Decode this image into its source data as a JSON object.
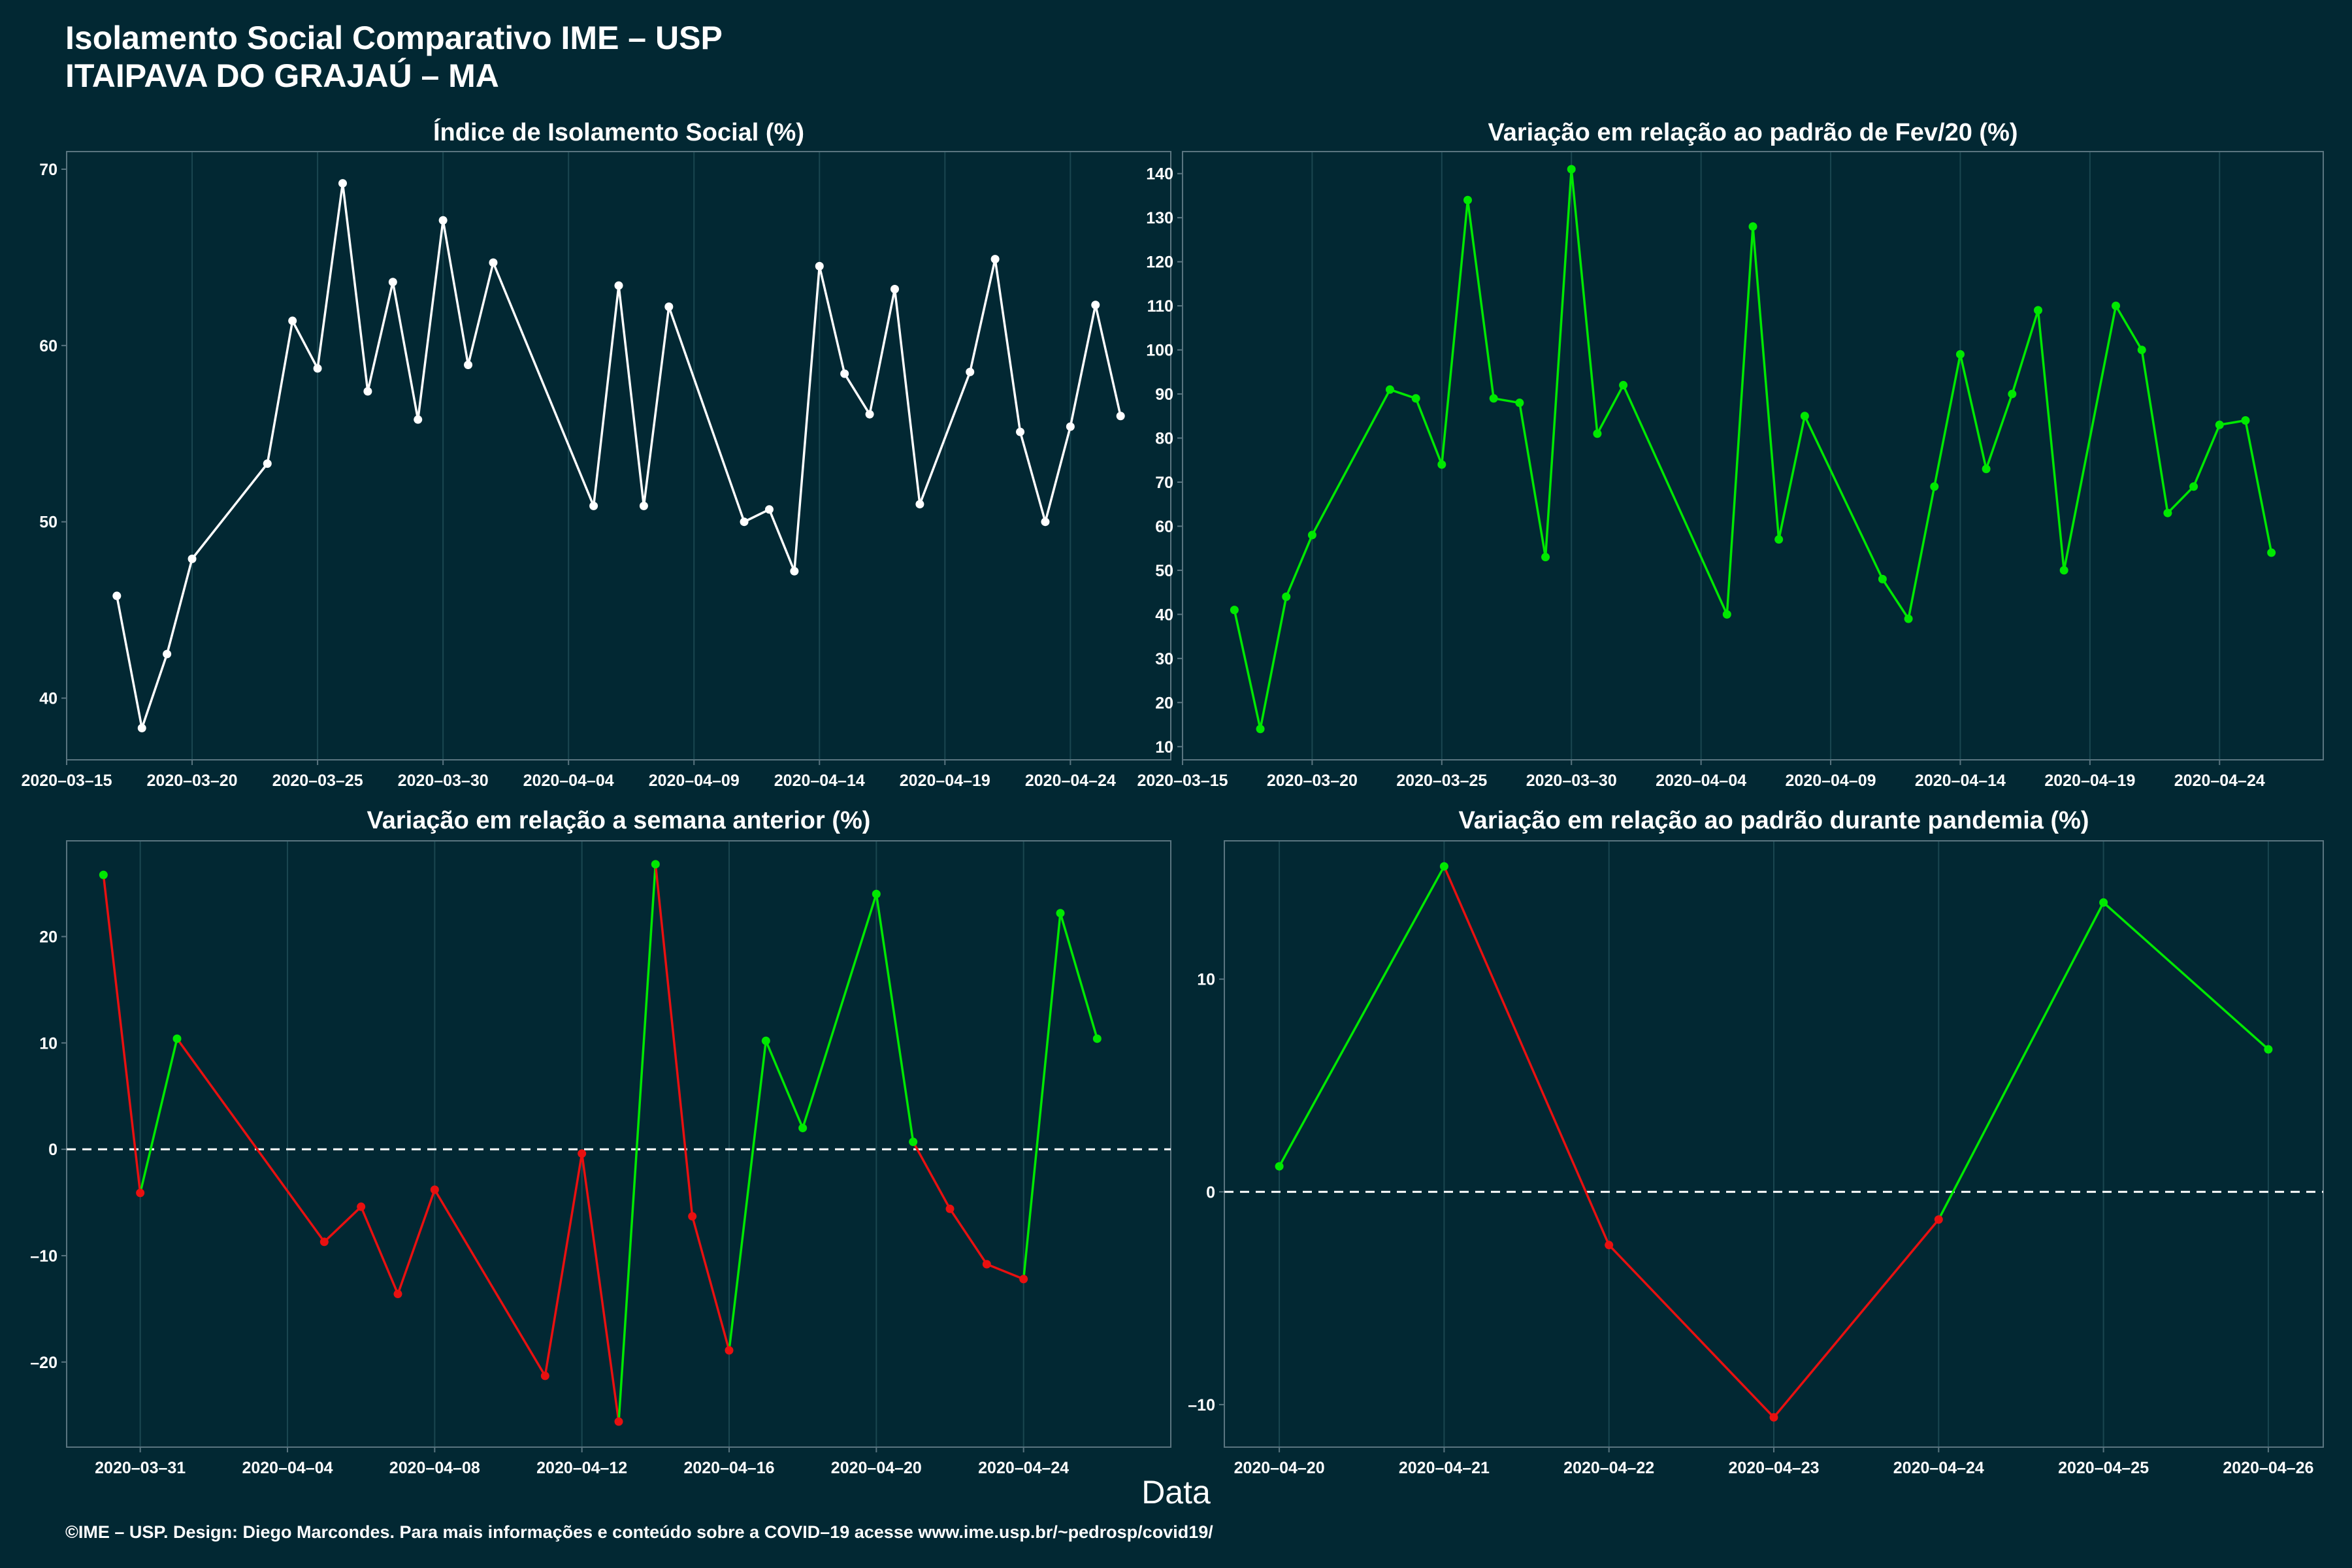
{
  "header": {
    "title": "Isolamento Social Comparativo IME – USP",
    "subtitle": "ITAIPAVA DO GRAJAÚ – MA"
  },
  "xlabel": "Data",
  "footer": "©IME – USP. Design: Diego Marcondes. Para mais informações e conteúdo sobre a COVID–19 acesse www.ime.usp.br/~pedrosp/covid19/",
  "colors": {
    "background": "#022833",
    "white": "#ffffff",
    "green": "#00e800",
    "red": "#e81010",
    "grid": "#1a4650",
    "border": "#5a7580"
  },
  "chart_data": [
    {
      "id": "p1",
      "type": "line",
      "title": "Índice de Isolamento Social (%)",
      "xlim": [
        "2020-03-15",
        "2020-04-28"
      ],
      "ylim": [
        36.5,
        71
      ],
      "x_ticks": [
        "2020-03-15",
        "2020-03-20",
        "2020-03-25",
        "2020-03-30",
        "2020-04-04",
        "2020-04-09",
        "2020-04-14",
        "2020-04-19",
        "2020-04-24"
      ],
      "y_ticks": [
        40,
        50,
        60,
        70
      ],
      "points": [
        {
          "x": "2020-03-17",
          "y": 45.8,
          "c": "white"
        },
        {
          "x": "2020-03-18",
          "y": 38.3,
          "c": "white"
        },
        {
          "x": "2020-03-19",
          "y": 42.5,
          "c": "white"
        },
        {
          "x": "2020-03-20",
          "y": 47.9,
          "c": "white"
        },
        {
          "x": "2020-03-23",
          "y": 53.3,
          "c": "white"
        },
        {
          "x": "2020-03-24",
          "y": 61.4,
          "c": "white"
        },
        {
          "x": "2020-03-25",
          "y": 58.7,
          "c": "white"
        },
        {
          "x": "2020-03-26",
          "y": 69.2,
          "c": "white"
        },
        {
          "x": "2020-03-27",
          "y": 57.4,
          "c": "white"
        },
        {
          "x": "2020-03-28",
          "y": 63.6,
          "c": "white"
        },
        {
          "x": "2020-03-29",
          "y": 55.8,
          "c": "white"
        },
        {
          "x": "2020-03-30",
          "y": 67.1,
          "c": "white"
        },
        {
          "x": "2020-03-31",
          "y": 58.9,
          "c": "white"
        },
        {
          "x": "2020-04-01",
          "y": 64.7,
          "c": "white"
        },
        {
          "x": "2020-04-05",
          "y": 50.9,
          "c": "white"
        },
        {
          "x": "2020-04-06",
          "y": 63.4,
          "c": "white"
        },
        {
          "x": "2020-04-07",
          "y": 50.9,
          "c": "white"
        },
        {
          "x": "2020-04-08",
          "y": 62.2,
          "c": "white"
        },
        {
          "x": "2020-04-11",
          "y": 50.0,
          "c": "white"
        },
        {
          "x": "2020-04-12",
          "y": 50.7,
          "c": "white"
        },
        {
          "x": "2020-04-13",
          "y": 47.2,
          "c": "white"
        },
        {
          "x": "2020-04-14",
          "y": 64.5,
          "c": "white"
        },
        {
          "x": "2020-04-15",
          "y": 58.4,
          "c": "white"
        },
        {
          "x": "2020-04-16",
          "y": 56.1,
          "c": "white"
        },
        {
          "x": "2020-04-17",
          "y": 63.2,
          "c": "white"
        },
        {
          "x": "2020-04-18",
          "y": 51.0,
          "c": "white"
        },
        {
          "x": "2020-04-20",
          "y": 58.5,
          "c": "white"
        },
        {
          "x": "2020-04-21",
          "y": 64.9,
          "c": "white"
        },
        {
          "x": "2020-04-22",
          "y": 55.1,
          "c": "white"
        },
        {
          "x": "2020-04-23",
          "y": 50.0,
          "c": "white"
        },
        {
          "x": "2020-04-24",
          "y": 55.4,
          "c": "white"
        },
        {
          "x": "2020-04-25",
          "y": 62.3,
          "c": "white"
        },
        {
          "x": "2020-04-26",
          "y": 56.0,
          "c": "white"
        }
      ]
    },
    {
      "id": "p2",
      "type": "line",
      "title": "Variação em relação ao padrão de Fev/20 (%)",
      "xlim": [
        "2020-03-15",
        "2020-04-28"
      ],
      "ylim": [
        7,
        145
      ],
      "x_ticks": [
        "2020-03-15",
        "2020-03-20",
        "2020-03-25",
        "2020-03-30",
        "2020-04-04",
        "2020-04-09",
        "2020-04-14",
        "2020-04-19",
        "2020-04-24"
      ],
      "y_ticks": [
        10,
        20,
        30,
        40,
        50,
        60,
        70,
        80,
        90,
        100,
        110,
        120,
        130,
        140
      ],
      "points": [
        {
          "x": "2020-03-17",
          "y": 41,
          "c": "green"
        },
        {
          "x": "2020-03-18",
          "y": 14,
          "c": "green"
        },
        {
          "x": "2020-03-19",
          "y": 44,
          "c": "green"
        },
        {
          "x": "2020-03-20",
          "y": 58,
          "c": "green"
        },
        {
          "x": "2020-03-23",
          "y": 91,
          "c": "green"
        },
        {
          "x": "2020-03-24",
          "y": 89,
          "c": "green"
        },
        {
          "x": "2020-03-25",
          "y": 74,
          "c": "green"
        },
        {
          "x": "2020-03-26",
          "y": 134,
          "c": "green"
        },
        {
          "x": "2020-03-27",
          "y": 89,
          "c": "green"
        },
        {
          "x": "2020-03-28",
          "y": 88,
          "c": "green"
        },
        {
          "x": "2020-03-29",
          "y": 53,
          "c": "green"
        },
        {
          "x": "2020-03-30",
          "y": 141,
          "c": "green"
        },
        {
          "x": "2020-03-31",
          "y": 81,
          "c": "green"
        },
        {
          "x": "2020-04-01",
          "y": 92,
          "c": "green"
        },
        {
          "x": "2020-04-05",
          "y": 40,
          "c": "green"
        },
        {
          "x": "2020-04-06",
          "y": 128,
          "c": "green"
        },
        {
          "x": "2020-04-07",
          "y": 57,
          "c": "green"
        },
        {
          "x": "2020-04-08",
          "y": 85,
          "c": "green"
        },
        {
          "x": "2020-04-11",
          "y": 48,
          "c": "green"
        },
        {
          "x": "2020-04-12",
          "y": 39,
          "c": "green"
        },
        {
          "x": "2020-04-13",
          "y": 69,
          "c": "green"
        },
        {
          "x": "2020-04-14",
          "y": 99,
          "c": "green"
        },
        {
          "x": "2020-04-15",
          "y": 73,
          "c": "green"
        },
        {
          "x": "2020-04-16",
          "y": 90,
          "c": "green"
        },
        {
          "x": "2020-04-17",
          "y": 109,
          "c": "green"
        },
        {
          "x": "2020-04-18",
          "y": 50,
          "c": "green"
        },
        {
          "x": "2020-04-20",
          "y": 110,
          "c": "green"
        },
        {
          "x": "2020-04-21",
          "y": 100,
          "c": "green"
        },
        {
          "x": "2020-04-22",
          "y": 63,
          "c": "green"
        },
        {
          "x": "2020-04-23",
          "y": 69,
          "c": "green"
        },
        {
          "x": "2020-04-24",
          "y": 83,
          "c": "green"
        },
        {
          "x": "2020-04-25",
          "y": 84,
          "c": "green"
        },
        {
          "x": "2020-04-26",
          "y": 54,
          "c": "green"
        }
      ]
    },
    {
      "id": "p3",
      "type": "line",
      "title": "Variação em relação a semana anterior (%)",
      "xlim": [
        "2020-03-29",
        "2020-04-28"
      ],
      "ylim": [
        -28,
        29
      ],
      "zero_line": true,
      "x_ticks": [
        "2020-03-31",
        "2020-04-04",
        "2020-04-08",
        "2020-04-12",
        "2020-04-16",
        "2020-04-20",
        "2020-04-24"
      ],
      "y_ticks": [
        -20,
        -10,
        0,
        10,
        20
      ],
      "points": [
        {
          "x": "2020-03-30",
          "y": 25.8,
          "c": "green"
        },
        {
          "x": "2020-03-31",
          "y": -4.1,
          "c": "red"
        },
        {
          "x": "2020-04-01",
          "y": 10.4,
          "c": "green"
        },
        {
          "x": "2020-04-05",
          "y": -8.7,
          "c": "red"
        },
        {
          "x": "2020-04-06",
          "y": -5.4,
          "c": "red"
        },
        {
          "x": "2020-04-07",
          "y": -13.6,
          "c": "red"
        },
        {
          "x": "2020-04-08",
          "y": -3.8,
          "c": "red"
        },
        {
          "x": "2020-04-11",
          "y": -21.3,
          "c": "red"
        },
        {
          "x": "2020-04-12",
          "y": -0.4,
          "c": "red"
        },
        {
          "x": "2020-04-13",
          "y": -25.6,
          "c": "red"
        },
        {
          "x": "2020-04-14",
          "y": 26.8,
          "c": "green"
        },
        {
          "x": "2020-04-15",
          "y": -6.3,
          "c": "red"
        },
        {
          "x": "2020-04-16",
          "y": -18.9,
          "c": "red"
        },
        {
          "x": "2020-04-17",
          "y": 10.2,
          "c": "green"
        },
        {
          "x": "2020-04-18",
          "y": 2.0,
          "c": "green"
        },
        {
          "x": "2020-04-20",
          "y": 24.0,
          "c": "green"
        },
        {
          "x": "2020-04-21",
          "y": 0.7,
          "c": "green"
        },
        {
          "x": "2020-04-22",
          "y": -5.6,
          "c": "red"
        },
        {
          "x": "2020-04-23",
          "y": -10.8,
          "c": "red"
        },
        {
          "x": "2020-04-24",
          "y": -12.2,
          "c": "red"
        },
        {
          "x": "2020-04-25",
          "y": 22.2,
          "c": "green"
        },
        {
          "x": "2020-04-26",
          "y": 10.4,
          "c": "green"
        }
      ]
    },
    {
      "id": "p4",
      "type": "line",
      "title": "Variação em relação ao padrão durante pandemia (%)",
      "xlim": [
        "2020-04-19T16",
        "2020-04-26T08"
      ],
      "ylim": [
        -12,
        16.5
      ],
      "zero_line": true,
      "x_ticks": [
        "2020-04-20",
        "2020-04-21",
        "2020-04-22",
        "2020-04-23",
        "2020-04-24",
        "2020-04-25",
        "2020-04-26"
      ],
      "y_ticks": [
        -10,
        0,
        10
      ],
      "points": [
        {
          "x": "2020-04-20",
          "y": 1.2,
          "c": "green"
        },
        {
          "x": "2020-04-21",
          "y": 15.3,
          "c": "green"
        },
        {
          "x": "2020-04-22",
          "y": -2.5,
          "c": "red"
        },
        {
          "x": "2020-04-23",
          "y": -10.6,
          "c": "red"
        },
        {
          "x": "2020-04-24",
          "y": -1.3,
          "c": "red"
        },
        {
          "x": "2020-04-25",
          "y": 13.6,
          "c": "green"
        },
        {
          "x": "2020-04-26",
          "y": 6.7,
          "c": "green"
        }
      ]
    }
  ]
}
